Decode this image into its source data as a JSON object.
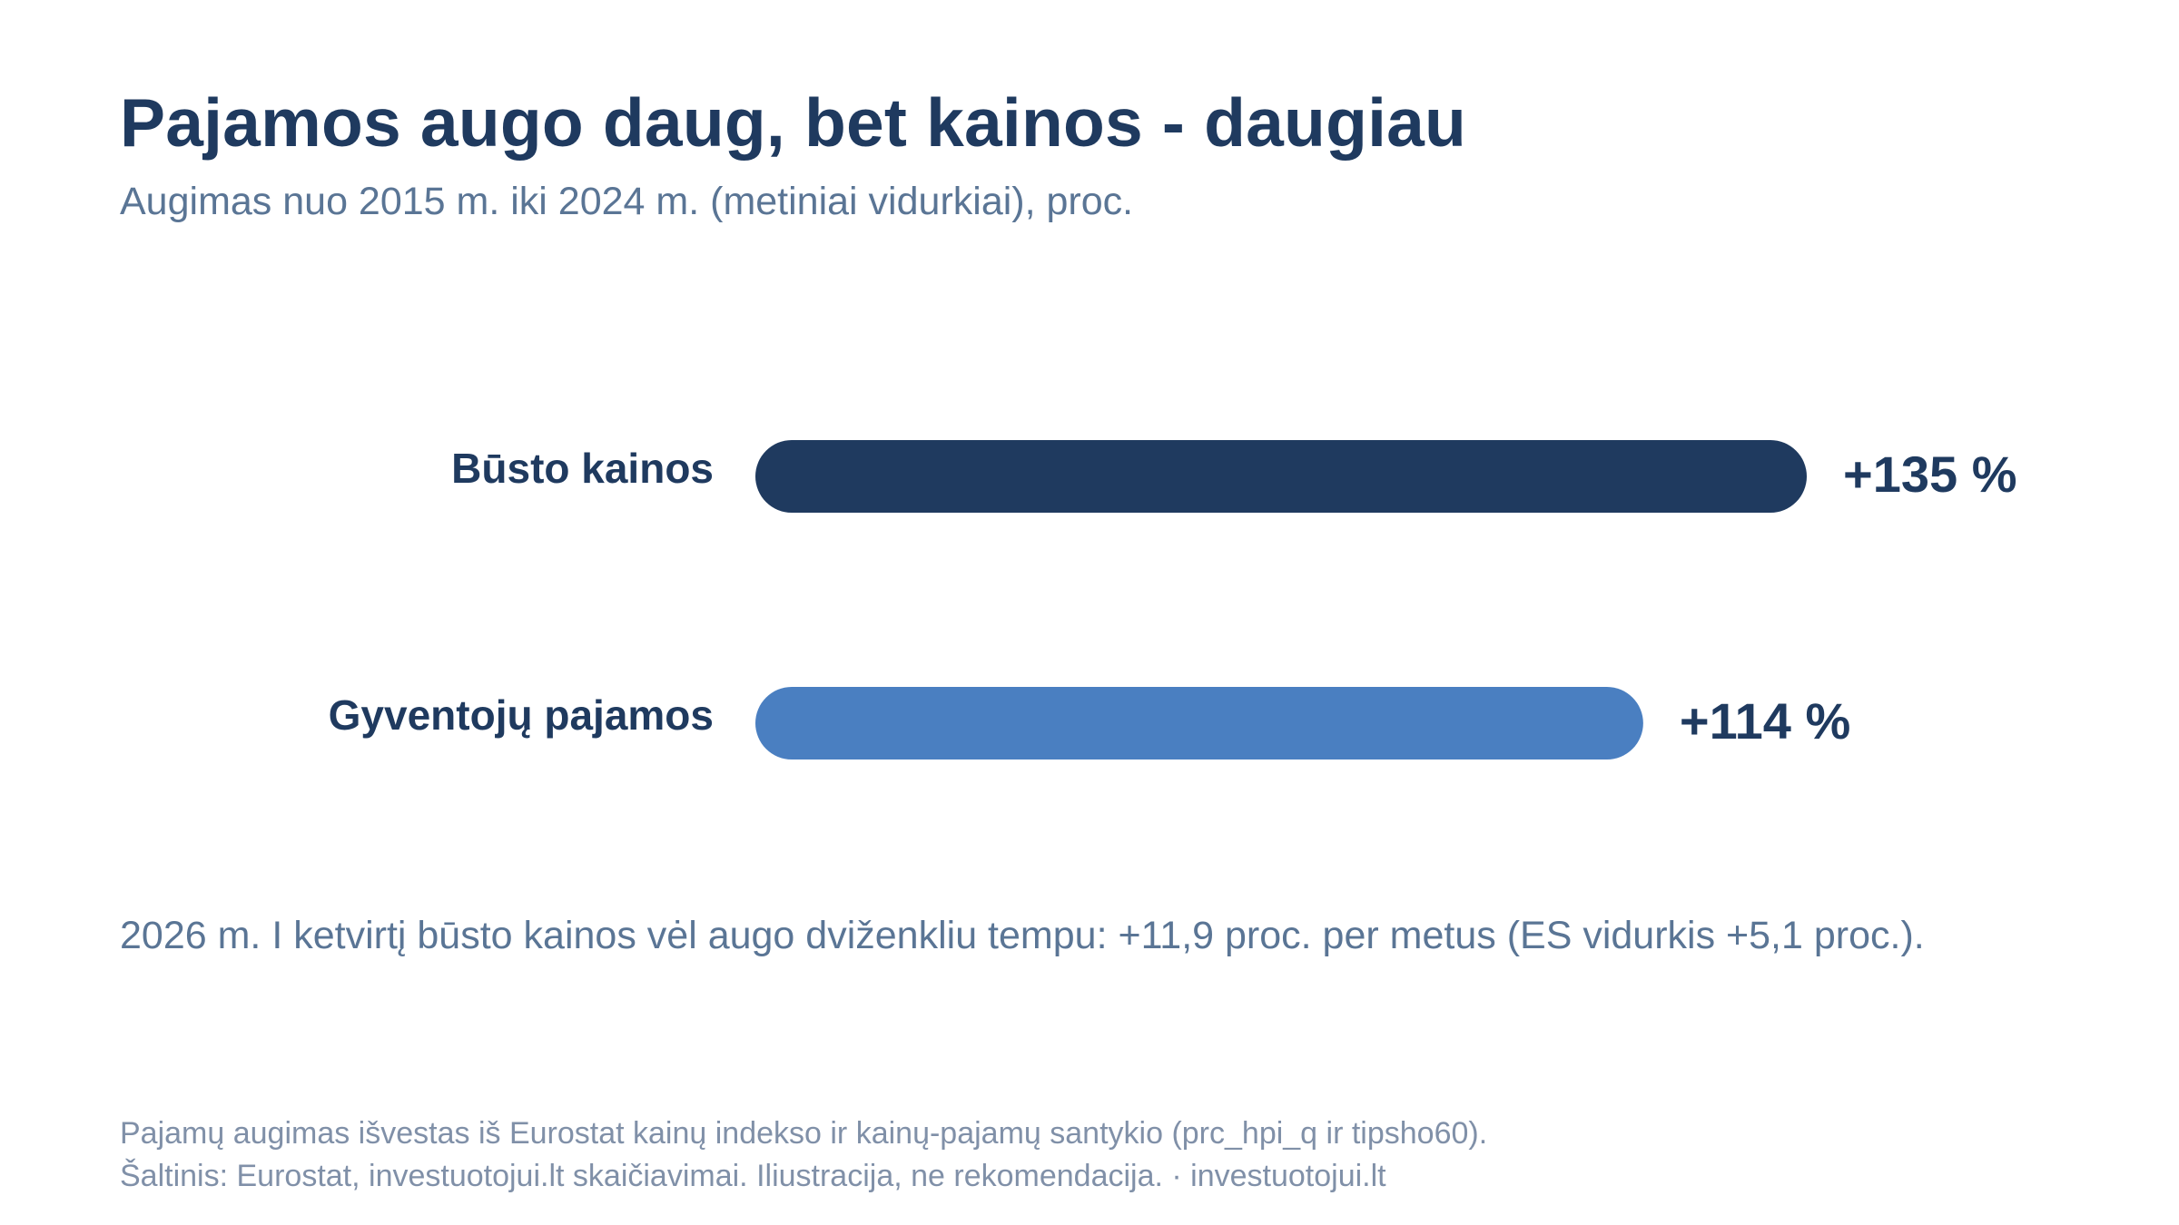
{
  "header": {
    "title": "Pajamos augo daug, bet kainos - daugiau",
    "subtitle": "Augimas nuo 2015 m. iki 2024 m. (metiniai vidurkiai), proc."
  },
  "chart_data": {
    "type": "bar",
    "orientation": "horizontal",
    "categories": [
      "Būsto kainos",
      "Gyventojų pajamos"
    ],
    "values": [
      135,
      114
    ],
    "value_labels": [
      "+135 %",
      "+114 %"
    ],
    "colors": [
      "#1f3a5f",
      "#4a7fc1"
    ],
    "xlim": [
      0,
      135
    ],
    "grid": false,
    "title": "Pajamos augo daug, bet kainos - daugiau",
    "subtitle": "Augimas nuo 2015 m. iki 2024 m. (metiniai vidurkiai), proc."
  },
  "note": "2026 m. I ketvirtį būsto kainos vėl augo dviženkliu tempu: +11,9 proc. per metus (ES vidurkis +5,1 proc.).",
  "footer": {
    "line1": "Pajamų augimas išvestas iš Eurostat kainų indekso ir kainų-pajamų santykio (prc_hpi_q ir tipsho60).",
    "line2": "Šaltinis: Eurostat, investuotojui.lt skaičiavimai. Iliustracija, ne rekomendacija. · investuotojui.lt"
  }
}
